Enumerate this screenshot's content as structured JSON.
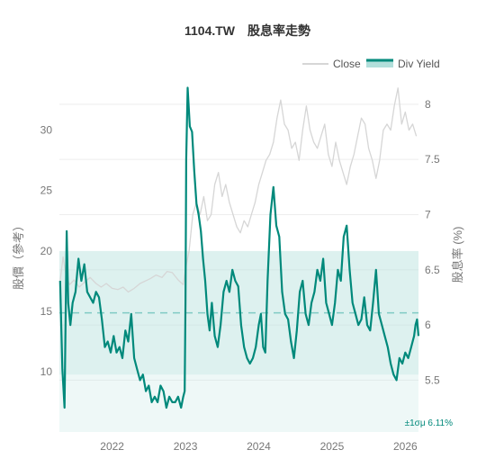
{
  "chart_data": {
    "type": "line",
    "title": "1104.TW　股息率走勢",
    "ylabel_left": "股價（參考）",
    "ylabel_right": "股息率 (%)",
    "x_ticks": [
      "2022",
      "2023",
      "2024",
      "2025",
      "2026"
    ],
    "xlim": [
      2021.28,
      2026.18
    ],
    "y_left": {
      "ticks": [
        10,
        15,
        20,
        25,
        30
      ],
      "lim": [
        5.0,
        33.7
      ]
    },
    "y_right": {
      "ticks": [
        5.5,
        6,
        6.5,
        7,
        7.5,
        8
      ],
      "lim": [
        5.03,
        8.17
      ]
    },
    "legend": {
      "position": "top-right",
      "items": [
        "Close",
        "Div Yield"
      ]
    },
    "grid": true,
    "colors": {
      "close": "#d6d6d6",
      "yield": "#00897b",
      "band": "#b2dfdb",
      "mean_line": "#80cbc4"
    },
    "band_label": "±1σμ 6.11%",
    "yield_mean": 6.11,
    "yield_band": [
      5.55,
      6.67
    ],
    "series": [
      {
        "name": "Close",
        "axis": "left",
        "x": [
          2021.29,
          2021.33,
          2021.37,
          2021.42,
          2021.48,
          2021.55,
          2021.62,
          2021.7,
          2021.78,
          2021.85,
          2021.92,
          2022.0,
          2022.08,
          2022.15,
          2022.22,
          2022.3,
          2022.38,
          2022.45,
          2022.52,
          2022.6,
          2022.68,
          2022.75,
          2022.82,
          2022.9,
          2022.97,
          2023.0,
          2023.05,
          2023.1,
          2023.15,
          2023.2,
          2023.25,
          2023.3,
          2023.35,
          2023.4,
          2023.45,
          2023.5,
          2023.55,
          2023.6,
          2023.65,
          2023.7,
          2023.75,
          2023.8,
          2023.85,
          2023.9,
          2023.95,
          2024.0,
          2024.05,
          2024.1,
          2024.15,
          2024.2,
          2024.25,
          2024.3,
          2024.35,
          2024.4,
          2024.45,
          2024.5,
          2024.55,
          2024.6,
          2024.65,
          2024.7,
          2024.75,
          2024.8,
          2024.85,
          2024.9,
          2024.95,
          2025.0,
          2025.05,
          2025.1,
          2025.15,
          2025.2,
          2025.25,
          2025.3,
          2025.35,
          2025.4,
          2025.45,
          2025.5,
          2025.55,
          2025.6,
          2025.65,
          2025.7,
          2025.75,
          2025.8,
          2025.85,
          2025.9,
          2025.95,
          2026.0,
          2026.05,
          2026.1,
          2026.15
        ],
        "values": [
          17.5,
          19.5,
          18.0,
          17.2,
          17.6,
          17.0,
          17.4,
          17.8,
          17.3,
          17.0,
          17.3,
          16.9,
          16.8,
          17.0,
          16.6,
          16.9,
          17.3,
          17.5,
          17.7,
          18.0,
          17.8,
          18.3,
          18.2,
          17.6,
          17.2,
          18.5,
          20.0,
          23.0,
          24.0,
          23.0,
          24.5,
          22.5,
          23.0,
          25.5,
          26.5,
          24.5,
          25.5,
          24.0,
          23.0,
          22.0,
          21.5,
          22.5,
          22.0,
          23.0,
          24.0,
          25.5,
          26.5,
          27.5,
          28.0,
          29.0,
          31.0,
          32.5,
          30.5,
          30.0,
          28.5,
          29.0,
          27.5,
          30.0,
          32.0,
          30.0,
          29.0,
          28.5,
          29.5,
          30.5,
          28.0,
          27.0,
          29.0,
          27.5,
          26.5,
          25.5,
          27.0,
          28.0,
          29.5,
          31.0,
          30.5,
          28.5,
          27.5,
          26.0,
          27.5,
          30.0,
          30.5,
          30.0,
          32.0,
          33.5,
          30.5,
          31.5,
          30.0,
          30.5,
          29.5
        ]
      },
      {
        "name": "Div Yield",
        "axis": "right",
        "x": [
          2021.29,
          2021.32,
          2021.35,
          2021.38,
          2021.4,
          2021.43,
          2021.46,
          2021.5,
          2021.54,
          2021.58,
          2021.62,
          2021.66,
          2021.7,
          2021.74,
          2021.78,
          2021.82,
          2021.86,
          2021.9,
          2021.94,
          2021.98,
          2022.02,
          2022.06,
          2022.1,
          2022.14,
          2022.18,
          2022.22,
          2022.26,
          2022.3,
          2022.34,
          2022.38,
          2022.42,
          2022.46,
          2022.5,
          2022.54,
          2022.58,
          2022.62,
          2022.66,
          2022.7,
          2022.74,
          2022.78,
          2022.82,
          2022.86,
          2022.9,
          2022.94,
          2022.97,
          2022.99,
          2023.0,
          2023.01,
          2023.03,
          2023.06,
          2023.09,
          2023.12,
          2023.15,
          2023.18,
          2023.21,
          2023.24,
          2023.27,
          2023.3,
          2023.33,
          2023.36,
          2023.4,
          2023.44,
          2023.48,
          2023.52,
          2023.56,
          2023.6,
          2023.64,
          2023.68,
          2023.72,
          2023.76,
          2023.8,
          2023.84,
          2023.88,
          2023.92,
          2023.96,
          2024.0,
          2024.03,
          2024.06,
          2024.09,
          2024.12,
          2024.16,
          2024.2,
          2024.24,
          2024.28,
          2024.32,
          2024.36,
          2024.4,
          2024.44,
          2024.48,
          2024.52,
          2024.56,
          2024.6,
          2024.64,
          2024.68,
          2024.72,
          2024.76,
          2024.8,
          2024.84,
          2024.88,
          2024.92,
          2024.96,
          2025.0,
          2025.04,
          2025.08,
          2025.12,
          2025.16,
          2025.2,
          2025.24,
          2025.28,
          2025.32,
          2025.36,
          2025.4,
          2025.44,
          2025.48,
          2025.52,
          2025.56,
          2025.6,
          2025.64,
          2025.68,
          2025.72,
          2025.76,
          2025.8,
          2025.84,
          2025.88,
          2025.92,
          2025.96,
          2026.0,
          2026.04,
          2026.08,
          2026.12,
          2026.14,
          2026.16,
          2026.18
        ],
        "values": [
          6.4,
          5.6,
          5.25,
          6.85,
          6.2,
          6.0,
          6.2,
          6.3,
          6.6,
          6.4,
          6.55,
          6.3,
          6.25,
          6.2,
          6.3,
          6.25,
          6.05,
          5.8,
          5.85,
          5.75,
          5.9,
          5.75,
          5.8,
          5.7,
          5.95,
          5.85,
          6.1,
          5.7,
          5.6,
          5.5,
          5.55,
          5.4,
          5.45,
          5.3,
          5.35,
          5.3,
          5.45,
          5.4,
          5.25,
          5.35,
          5.3,
          5.3,
          5.35,
          5.25,
          5.35,
          5.4,
          6.2,
          7.5,
          8.15,
          7.8,
          7.75,
          7.4,
          7.1,
          7.0,
          6.85,
          6.6,
          6.4,
          6.1,
          5.95,
          6.2,
          5.9,
          5.8,
          6.0,
          6.3,
          6.4,
          6.3,
          6.5,
          6.4,
          6.35,
          6.0,
          5.8,
          5.7,
          5.65,
          5.7,
          5.8,
          6.0,
          6.1,
          5.8,
          5.75,
          6.4,
          7.0,
          7.25,
          6.9,
          6.8,
          6.3,
          6.1,
          6.05,
          5.85,
          5.7,
          5.95,
          6.3,
          6.4,
          6.1,
          6.0,
          6.2,
          6.3,
          6.5,
          6.4,
          6.6,
          6.2,
          6.1,
          6.0,
          6.2,
          6.5,
          6.4,
          6.8,
          6.9,
          6.5,
          6.2,
          6.1,
          6.0,
          6.05,
          6.25,
          6.0,
          5.95,
          6.2,
          6.5,
          6.1,
          6.0,
          5.9,
          5.8,
          5.65,
          5.55,
          5.5,
          5.7,
          5.65,
          5.75,
          5.7,
          5.8,
          5.9,
          6.0,
          6.05,
          5.9
        ]
      }
    ]
  }
}
